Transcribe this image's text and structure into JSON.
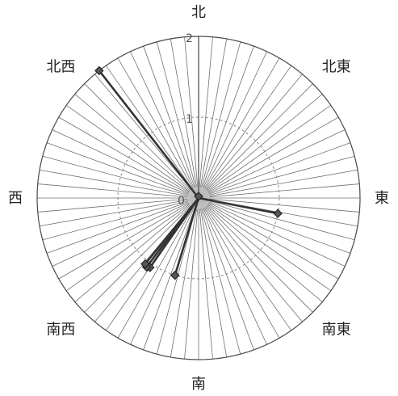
{
  "chart_data": {
    "type": "radar",
    "title": "",
    "directions": [
      "北",
      "北東",
      "東",
      "南東",
      "南",
      "南西",
      "西",
      "北西"
    ],
    "radial_ticks": [
      "0",
      "1",
      "2"
    ],
    "rlim": [
      0,
      2
    ],
    "spokes": 72,
    "grid": true,
    "series": [
      {
        "marker": "diamond",
        "color": "#333333",
        "points": [
          {
            "bearing_deg": 0,
            "value": 0.02
          },
          {
            "bearing_deg": 101,
            "value": 1.0
          },
          {
            "bearing_deg": 197,
            "value": 1.0
          },
          {
            "bearing_deg": 215,
            "value": 1.05
          },
          {
            "bearing_deg": 217,
            "value": 1.07
          },
          {
            "bearing_deg": 219,
            "value": 1.05
          },
          {
            "bearing_deg": 322,
            "value": 2.0
          }
        ]
      }
    ]
  }
}
